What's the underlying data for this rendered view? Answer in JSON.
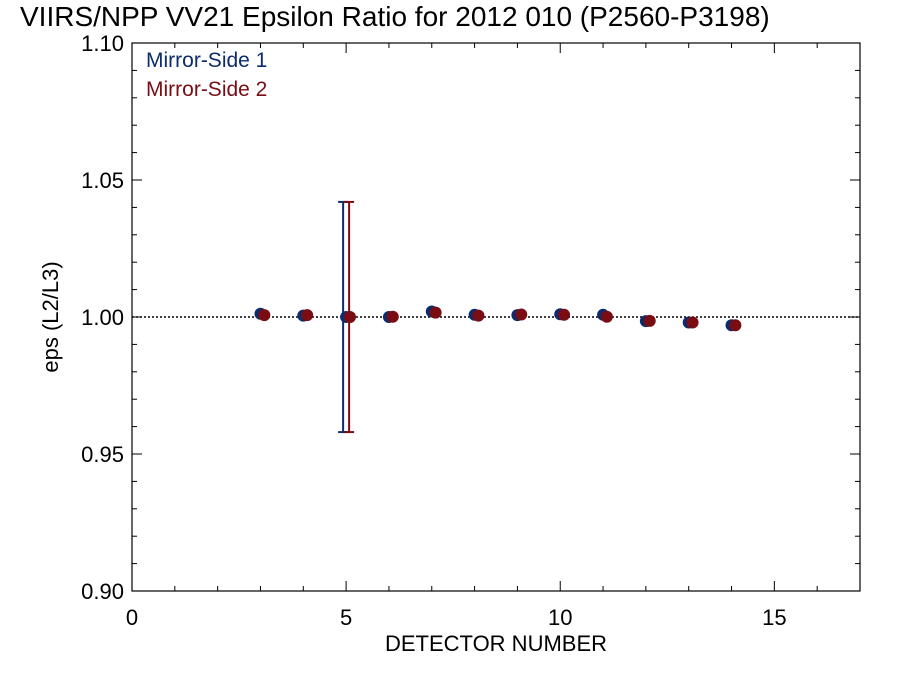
{
  "chart_data": {
    "type": "scatter",
    "title": "VIIRS/NPP VV21 Epsilon Ratio for 2012 010 (P2560-P3198)",
    "xlabel": "DETECTOR NUMBER",
    "ylabel": "eps (L2/L3)",
    "xlim": [
      0,
      17
    ],
    "ylim": [
      0.9,
      1.1
    ],
    "x_ticks": [
      "0",
      "5",
      "10",
      "15"
    ],
    "y_ticks": [
      "0.90",
      "0.95",
      "1.00",
      "1.05",
      "1.10"
    ],
    "reference_line": 1.0,
    "legend_position": "top-left",
    "series": [
      {
        "name": "Mirror-Side 1",
        "color": "#0d2c6e",
        "x": [
          3,
          4,
          5,
          6,
          7,
          8,
          9,
          10,
          11,
          12,
          13,
          14
        ],
        "y": [
          1.0012,
          1.0005,
          1.0,
          1.0,
          1.002,
          1.0008,
          1.0007,
          1.001,
          1.0008,
          0.9985,
          0.998,
          0.997
        ],
        "error_bars": [
          {
            "x": 5,
            "low": 0.958,
            "high": 1.042
          }
        ]
      },
      {
        "name": "Mirror-Side 2",
        "color": "#7a0d14",
        "x": [
          3,
          4,
          5,
          6,
          7,
          8,
          9,
          10,
          11,
          12,
          13,
          14
        ],
        "y": [
          1.0007,
          1.0007,
          1.0,
          1.0001,
          1.0016,
          1.0005,
          1.0009,
          1.0008,
          1.0001,
          0.9986,
          0.998,
          0.997
        ],
        "error_bars": [
          {
            "x": 5,
            "low": 0.958,
            "high": 1.042
          }
        ]
      }
    ]
  }
}
